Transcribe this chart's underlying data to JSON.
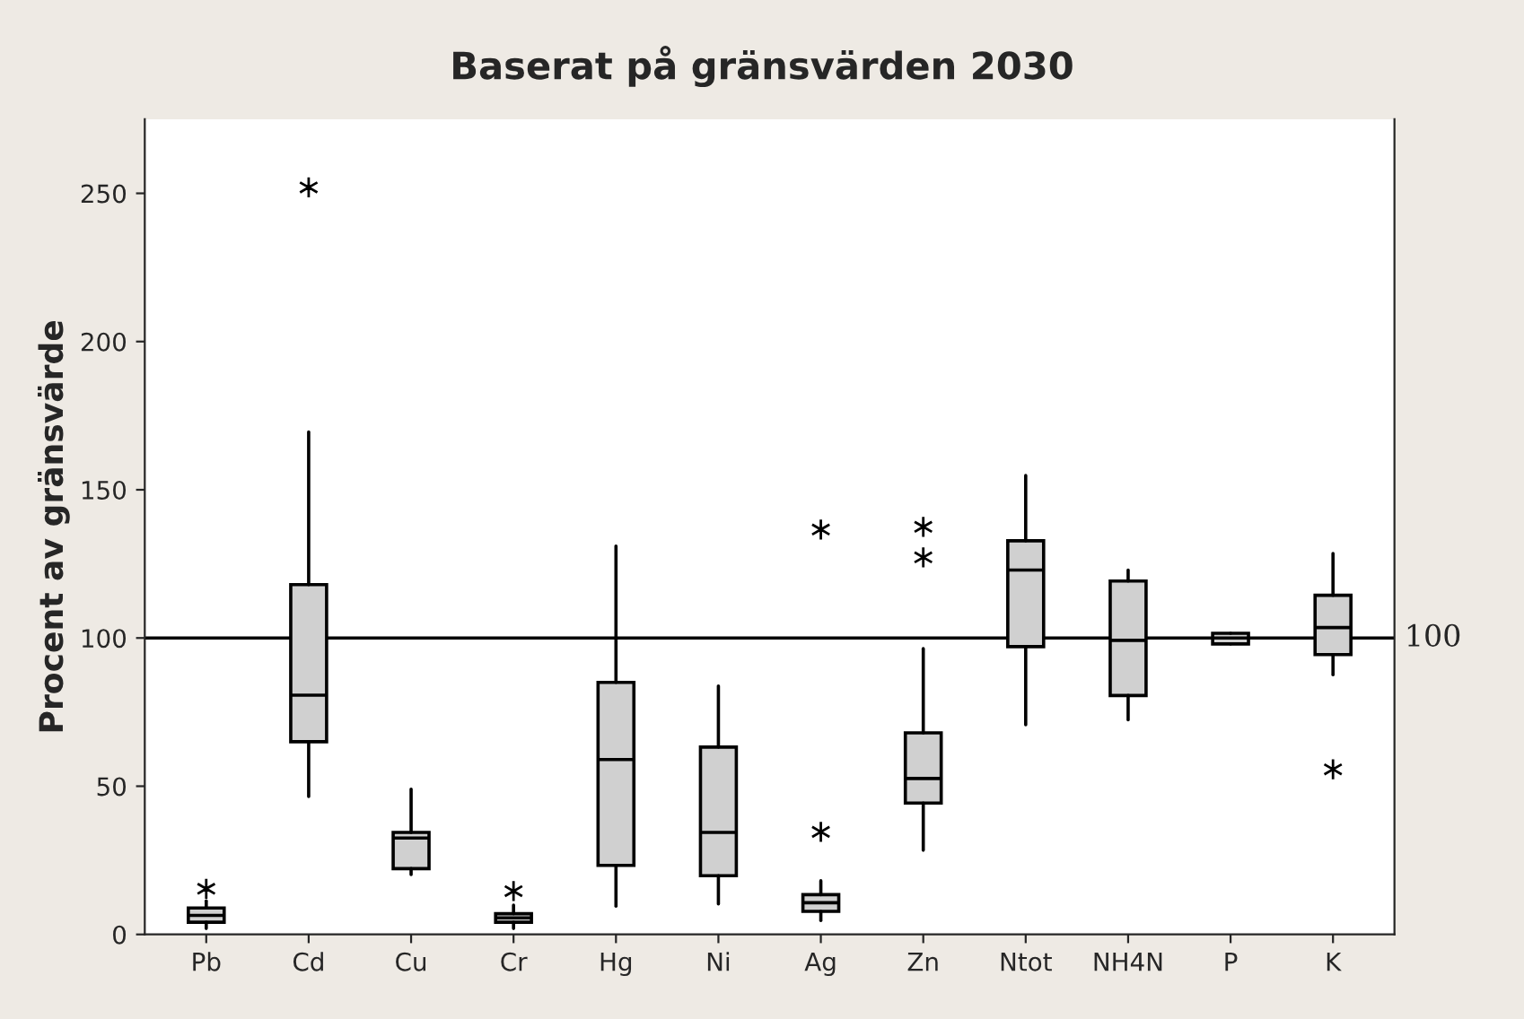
{
  "chart_data": {
    "type": "box",
    "title": "Baserat på gränsvärden 2030",
    "ylabel": "Procent av gränsvärde",
    "categories": [
      "Pb",
      "Cd",
      "Cu",
      "Cr",
      "Hg",
      "Ni",
      "Ag",
      "Zn",
      "Ntot",
      "NH4N",
      "P",
      "K"
    ],
    "color": "#d0d0d0",
    "boxes": [
      {
        "low": 2,
        "q1": 4.1,
        "median": 6.4,
        "q3": 8.9,
        "high": 11.3,
        "outliers": [
          15.4
        ]
      },
      {
        "low": 46.5,
        "q1": 65,
        "median": 80.7,
        "q3": 118,
        "high": 169.5,
        "outliers": [
          252
        ]
      },
      {
        "low": 20.2,
        "q1": 22.2,
        "median": 32.5,
        "q3": 34.4,
        "high": 49
      },
      {
        "low": 2,
        "q1": 4.1,
        "median": 5.6,
        "q3": 7,
        "high": 9.9,
        "outliers": [
          14.6
        ]
      },
      {
        "low": 9.5,
        "q1": 23.3,
        "median": 59,
        "q3": 85,
        "high": 131
      },
      {
        "low": 10.3,
        "q1": 19.8,
        "median": 34.4,
        "q3": 63.2,
        "high": 83.8
      },
      {
        "low": 4.7,
        "q1": 7.8,
        "median": 10.7,
        "q3": 13.4,
        "high": 18.1,
        "outliers": [
          34.6,
          136.6
        ]
      },
      {
        "low": 28.4,
        "q1": 44.3,
        "median": 52.6,
        "q3": 68,
        "high": 96.4,
        "outliers": [
          127.2,
          137.5
        ]
      },
      {
        "low": 70.7,
        "q1": 97.1,
        "median": 122.9,
        "q3": 132.8,
        "high": 154.8
      },
      {
        "low": 72.4,
        "q1": 80.6,
        "median": 99.2,
        "q3": 119.2,
        "high": 122.9
      },
      {
        "low": 98,
        "q1": 98,
        "median": 100,
        "q3": 101.6,
        "high": 101.6
      },
      {
        "low": 87.6,
        "q1": 94.4,
        "median": 103.5,
        "q3": 114.4,
        "high": 128.5,
        "outliers": [
          55.7
        ]
      }
    ],
    "ylim": [
      0,
      275
    ],
    "yticks": [
      0,
      50,
      100,
      150,
      200,
      250
    ],
    "ref_lines": [
      {
        "axis": "y",
        "value": 100,
        "label": "100",
        "color": "#000000"
      }
    ],
    "grid": false
  }
}
